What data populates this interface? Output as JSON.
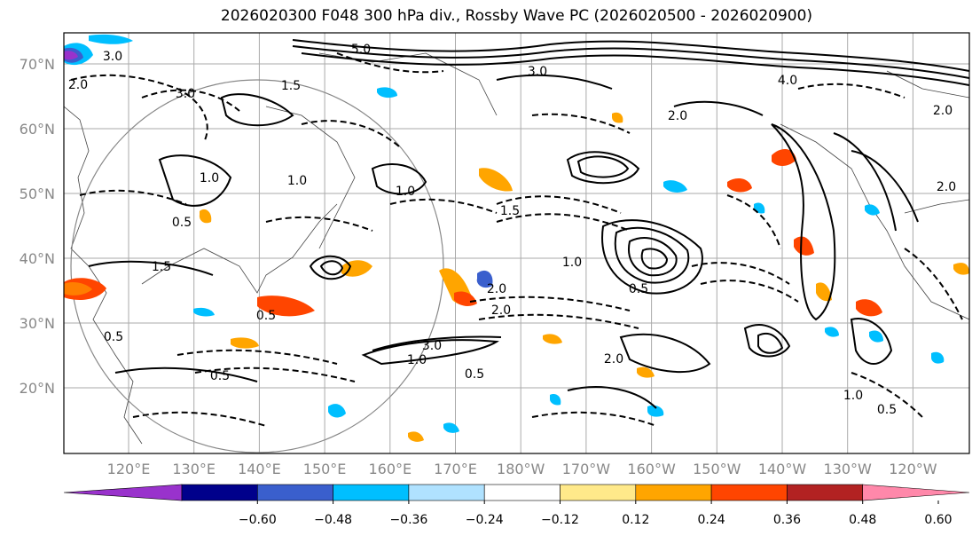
{
  "title": "2026020300 F048 300 hPa div., Rossby Wave PC (2026020500 - 2026020900)",
  "latitude_labels": [
    "70°N",
    "60°N",
    "50°N",
    "40°N",
    "30°N",
    "20°N"
  ],
  "longitude_labels": [
    "120°E",
    "130°E",
    "140°E",
    "150°E",
    "160°E",
    "170°E",
    "180°W",
    "170°W",
    "160°W",
    "150°W",
    "140°W",
    "130°W",
    "120°W"
  ],
  "colorbar": {
    "tick_labels": [
      "−0.60",
      "−0.48",
      "−0.36",
      "−0.24",
      "−0.12",
      "0.12",
      "0.24",
      "0.36",
      "0.48",
      "0.60"
    ],
    "bins": [
      "#9932cc",
      "#00008b",
      "#3a5fcd",
      "#00bfff",
      "#b0e2ff",
      "#ffffff",
      "#ffe98a",
      "#ffa500",
      "#ff4500",
      "#b22222",
      "#ff88aa"
    ]
  },
  "contour_labels": [
    "5.0",
    "3.0",
    "2.0",
    "1.0",
    "0.5",
    "3.0",
    "1.0",
    "1.0",
    "2.0",
    "1.5",
    "2.0",
    "3.0",
    "4.0",
    "2.0",
    "0.5",
    "1.5",
    "2.0",
    "2.0",
    "3.0",
    "0.5",
    "1.0",
    "0.5",
    "1.0",
    "0.5",
    "2.0",
    "1.0",
    "0.5",
    "0.5",
    "1.5"
  ],
  "chart_data": {
    "type": "map",
    "title": "2026020300 F048 300 hPa div., Rossby Wave PC (2026020500 - 2026020900)",
    "lon_range": [
      "110°E",
      "115°W"
    ],
    "lat_range": [
      10,
      75
    ],
    "shading": "300 hPa divergence",
    "contours": "Rossby Wave PC"
  }
}
